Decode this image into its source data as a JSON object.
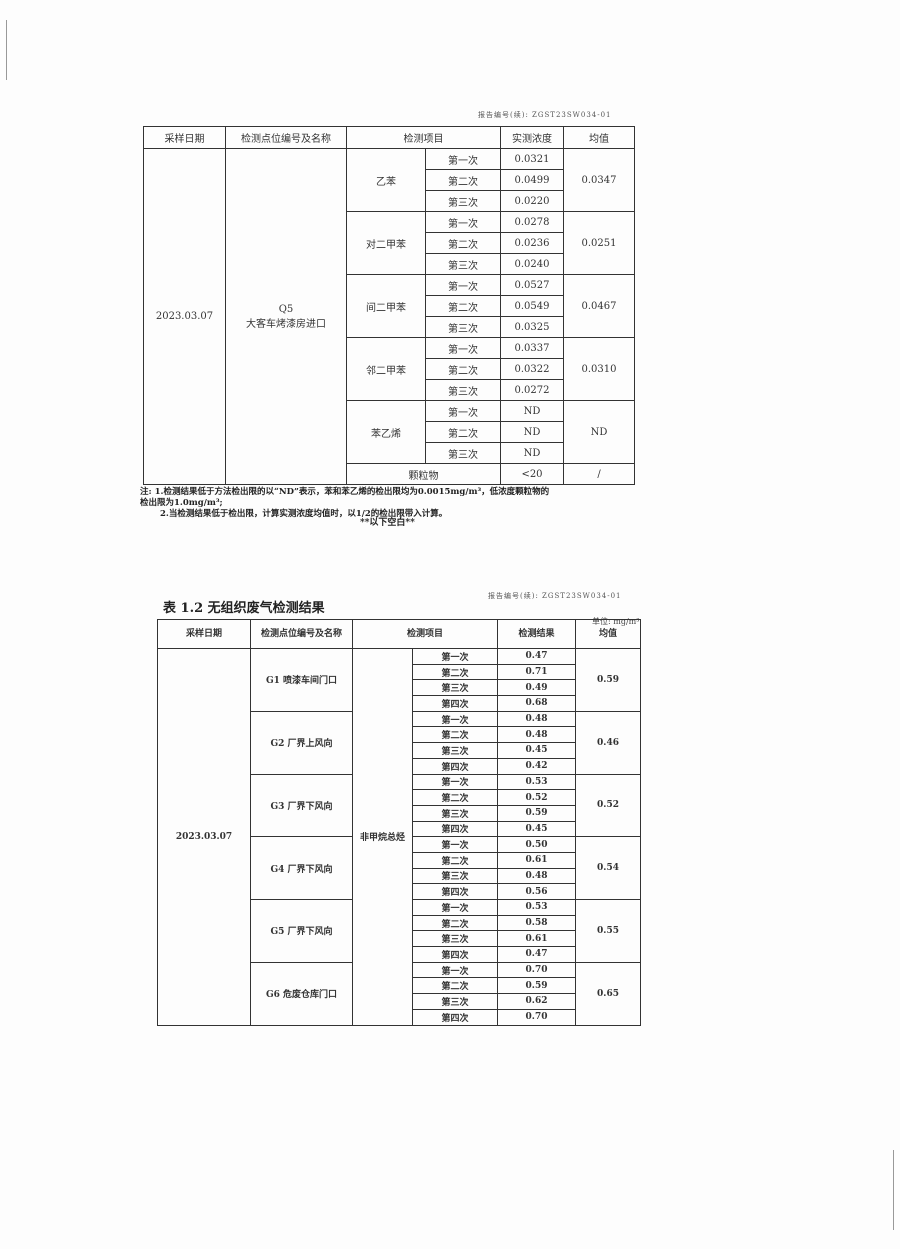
{
  "report_code_1": "报告编号(续): ZGST23SW034-01",
  "report_code_2": "报告编号(续): ZGST23SW034-01",
  "table1": {
    "headers": [
      "采样日期",
      "检测点位编号及名称",
      "检测项目",
      "实测浓度",
      "均值"
    ],
    "date": "2023.03.07",
    "point_code": "Q5",
    "point_name": "大客车烤漆房进口",
    "groups": [
      {
        "item": "乙苯",
        "runs": [
          "第一次",
          "第二次",
          "第三次"
        ],
        "values": [
          "0.0321",
          "0.0499",
          "0.0220"
        ],
        "mean": "0.0347"
      },
      {
        "item": "对二甲苯",
        "runs": [
          "第一次",
          "第二次",
          "第三次"
        ],
        "values": [
          "0.0278",
          "0.0236",
          "0.0240"
        ],
        "mean": "0.0251"
      },
      {
        "item": "间二甲苯",
        "runs": [
          "第一次",
          "第二次",
          "第三次"
        ],
        "values": [
          "0.0527",
          "0.0549",
          "0.0325"
        ],
        "mean": "0.0467"
      },
      {
        "item": "邻二甲苯",
        "runs": [
          "第一次",
          "第二次",
          "第三次"
        ],
        "values": [
          "0.0337",
          "0.0322",
          "0.0272"
        ],
        "mean": "0.0310"
      },
      {
        "item": "苯乙烯",
        "runs": [
          "第一次",
          "第二次",
          "第三次"
        ],
        "values": [
          "ND",
          "ND",
          "ND"
        ],
        "mean": "ND"
      }
    ],
    "last_row": {
      "item": "颗粒物",
      "value": "<20",
      "mean": "/"
    }
  },
  "notes": {
    "line1": "注: 1.检测结果低于方法检出限的以“ND”表示，苯和苯乙烯的检出限均为0.0015mg/m³，低浓度颗粒物的",
    "line2": "检出限为1.0mg/m³;",
    "line3": "2.当检测结果低于检出限，计算实测浓度均值时，以1/2的检出限带入计算。",
    "blank": "**以下空白**"
  },
  "table2": {
    "title": "表 1.2  无组织废气检测结果",
    "unit": "单位: mg/m³",
    "headers": [
      "采样日期",
      "检测点位编号及名称",
      "检测项目",
      "检测结果",
      "均值"
    ],
    "date": "2023.03.07",
    "item": "非甲烷总烃",
    "groups": [
      {
        "point": "G1 喷漆车间门口",
        "runs": [
          "第一次",
          "第二次",
          "第三次",
          "第四次"
        ],
        "values": [
          "0.47",
          "0.71",
          "0.49",
          "0.68"
        ],
        "mean": "0.59"
      },
      {
        "point": "G2 厂界上风向",
        "runs": [
          "第一次",
          "第二次",
          "第三次",
          "第四次"
        ],
        "values": [
          "0.48",
          "0.48",
          "0.45",
          "0.42"
        ],
        "mean": "0.46"
      },
      {
        "point": "G3 厂界下风向",
        "runs": [
          "第一次",
          "第二次",
          "第三次",
          "第四次"
        ],
        "values": [
          "0.53",
          "0.52",
          "0.59",
          "0.45"
        ],
        "mean": "0.52"
      },
      {
        "point": "G4 厂界下风向",
        "runs": [
          "第一次",
          "第二次",
          "第三次",
          "第四次"
        ],
        "values": [
          "0.50",
          "0.61",
          "0.48",
          "0.56"
        ],
        "mean": "0.54"
      },
      {
        "point": "G5 厂界下风向",
        "runs": [
          "第一次",
          "第二次",
          "第三次",
          "第四次"
        ],
        "values": [
          "0.53",
          "0.58",
          "0.61",
          "0.47"
        ],
        "mean": "0.55"
      },
      {
        "point": "G6 危废仓库门口",
        "runs": [
          "第一次",
          "第二次",
          "第三次",
          "第四次"
        ],
        "values": [
          "0.70",
          "0.59",
          "0.62",
          "0.70"
        ],
        "mean": "0.65"
      }
    ]
  }
}
